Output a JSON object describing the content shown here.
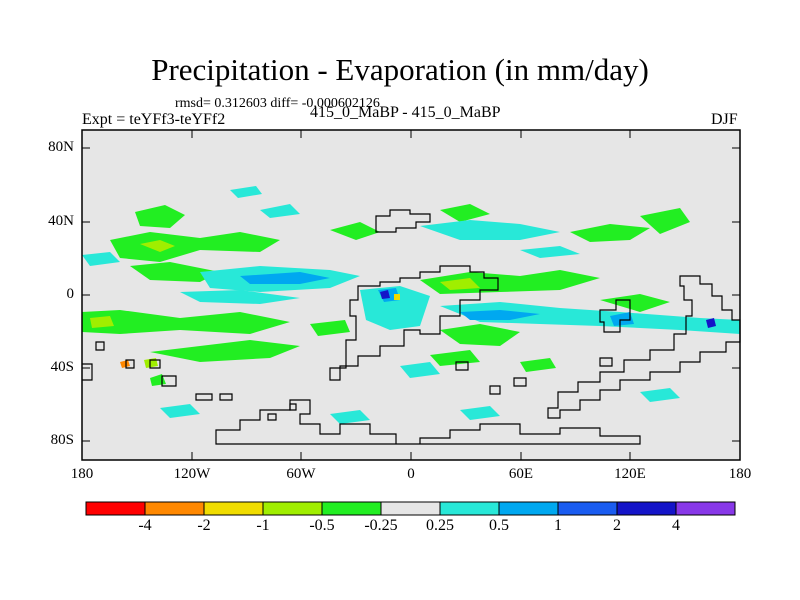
{
  "title": "Precipitation - Evaporation (in mm/day)",
  "stats": "rmsd= 0.312603 diff= -0.000602126",
  "experiment": "Expt = teYFf3-teYFf2",
  "runs": "415_0_MaBP - 415_0_MaBP",
  "season": "DJF",
  "lat_labels": [
    "80N",
    "40N",
    "0",
    "40S",
    "80S"
  ],
  "lon_labels": [
    "180",
    "120W",
    "60W",
    "0",
    "60E",
    "120E",
    "180"
  ],
  "colorbar": {
    "colors": [
      "#ff0000",
      "#ff8800",
      "#f0dc00",
      "#a0ee00",
      "#22ee22",
      "#e6e6e6",
      "#28e8d8",
      "#00a8f0",
      "#1a5cf0",
      "#1414c8",
      "#8838e8"
    ],
    "labels": [
      "-4",
      "-2",
      "-1",
      "-0.5",
      "-0.25",
      "0.25",
      "0.5",
      "1",
      "2",
      "4"
    ]
  },
  "colors": {
    "background": "#e6e6e6",
    "coast": "#000000"
  }
}
